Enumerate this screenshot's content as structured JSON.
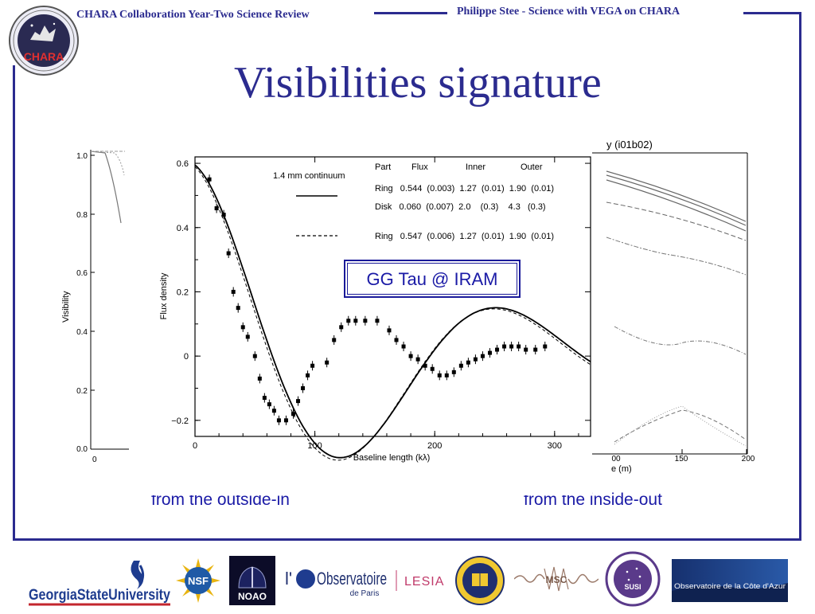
{
  "header": {
    "left_title": "CHARA Collaboration Year-Two Science Review",
    "right_title": "Philippe Stee - Science with VEGA on CHARA",
    "logo_text": "CHARA"
  },
  "slide": {
    "title": "Visibilities signature",
    "caption_left": "from the outside-in",
    "caption_right": "from the inside-out"
  },
  "left_plot": {
    "ylabel": "Visibility",
    "yticks": [
      "1.0",
      "0.8",
      "0.6",
      "0.4",
      "0.2",
      "0.0"
    ],
    "xtick0": "0"
  },
  "right_plot": {
    "title_fragment": "y (i01b02)",
    "xticks": [
      "00",
      "150",
      "200"
    ],
    "xlabel_fragment": "e (m)"
  },
  "center_plot": {
    "ylabel": "Flux density",
    "xlabel": "Baseline length (kλ)",
    "yticks": [
      "0.6",
      "0.4",
      "0.2",
      "0",
      "−0.2"
    ],
    "xticks": [
      "0",
      "100",
      "200",
      "300"
    ],
    "legend_title": "1.4 mm continuum",
    "table": {
      "headers": [
        "Part",
        "Flux",
        "Inner",
        "Outer"
      ],
      "rows": [
        "Ring   0.544  (0.003)  1.27  (0.01)  1.90  (0.01)",
        "Disk   0.060  (0.007)  2.0    (0.3)    4.3   (0.3)",
        "Ring   0.547  (0.006)  1.27  (0.01)  1.90  (0.01)"
      ]
    },
    "annotation": "GG Tau @ IRAM"
  },
  "chart_data": {
    "type": "scatter",
    "xlabel": "Baseline length (kλ)",
    "ylabel": "Flux density",
    "xlim": [
      0,
      330
    ],
    "ylim": [
      -0.25,
      0.62
    ],
    "x": [
      12,
      18,
      24,
      28,
      32,
      36,
      40,
      44,
      50,
      54,
      58,
      62,
      66,
      70,
      76,
      82,
      86,
      90,
      94,
      98,
      110,
      116,
      122,
      128,
      134,
      142,
      152,
      162,
      168,
      174,
      180,
      186,
      192,
      198,
      204,
      210,
      216,
      222,
      228,
      234,
      240,
      246,
      252,
      258,
      264,
      270,
      276,
      284,
      292
    ],
    "y": [
      0.55,
      0.46,
      0.44,
      0.32,
      0.2,
      0.15,
      0.09,
      0.06,
      0.0,
      -0.07,
      -0.13,
      -0.15,
      -0.17,
      -0.2,
      -0.2,
      -0.18,
      -0.14,
      -0.1,
      -0.06,
      -0.03,
      -0.02,
      0.05,
      0.09,
      0.11,
      0.11,
      0.11,
      0.11,
      0.08,
      0.05,
      0.03,
      0.0,
      -0.01,
      -0.03,
      -0.04,
      -0.06,
      -0.06,
      -0.05,
      -0.03,
      -0.02,
      -0.01,
      0.0,
      0.01,
      0.02,
      0.03,
      0.03,
      0.03,
      0.02,
      0.02,
      0.03
    ],
    "series": [
      {
        "style": "solid",
        "curve": "ring+disk model"
      },
      {
        "style": "dashed",
        "curve": "ring model"
      }
    ]
  },
  "logos": {
    "gsu": "GeorgiaStateUniversity",
    "nsf": "NSF",
    "noao": "NOAO",
    "obs_main": "Observatoire",
    "obs_sub": "de Paris",
    "lesia": "LESIA",
    "msc": "MSC",
    "susi": "SUSI",
    "oca": "Observatoire de la Côte d'Azur"
  }
}
